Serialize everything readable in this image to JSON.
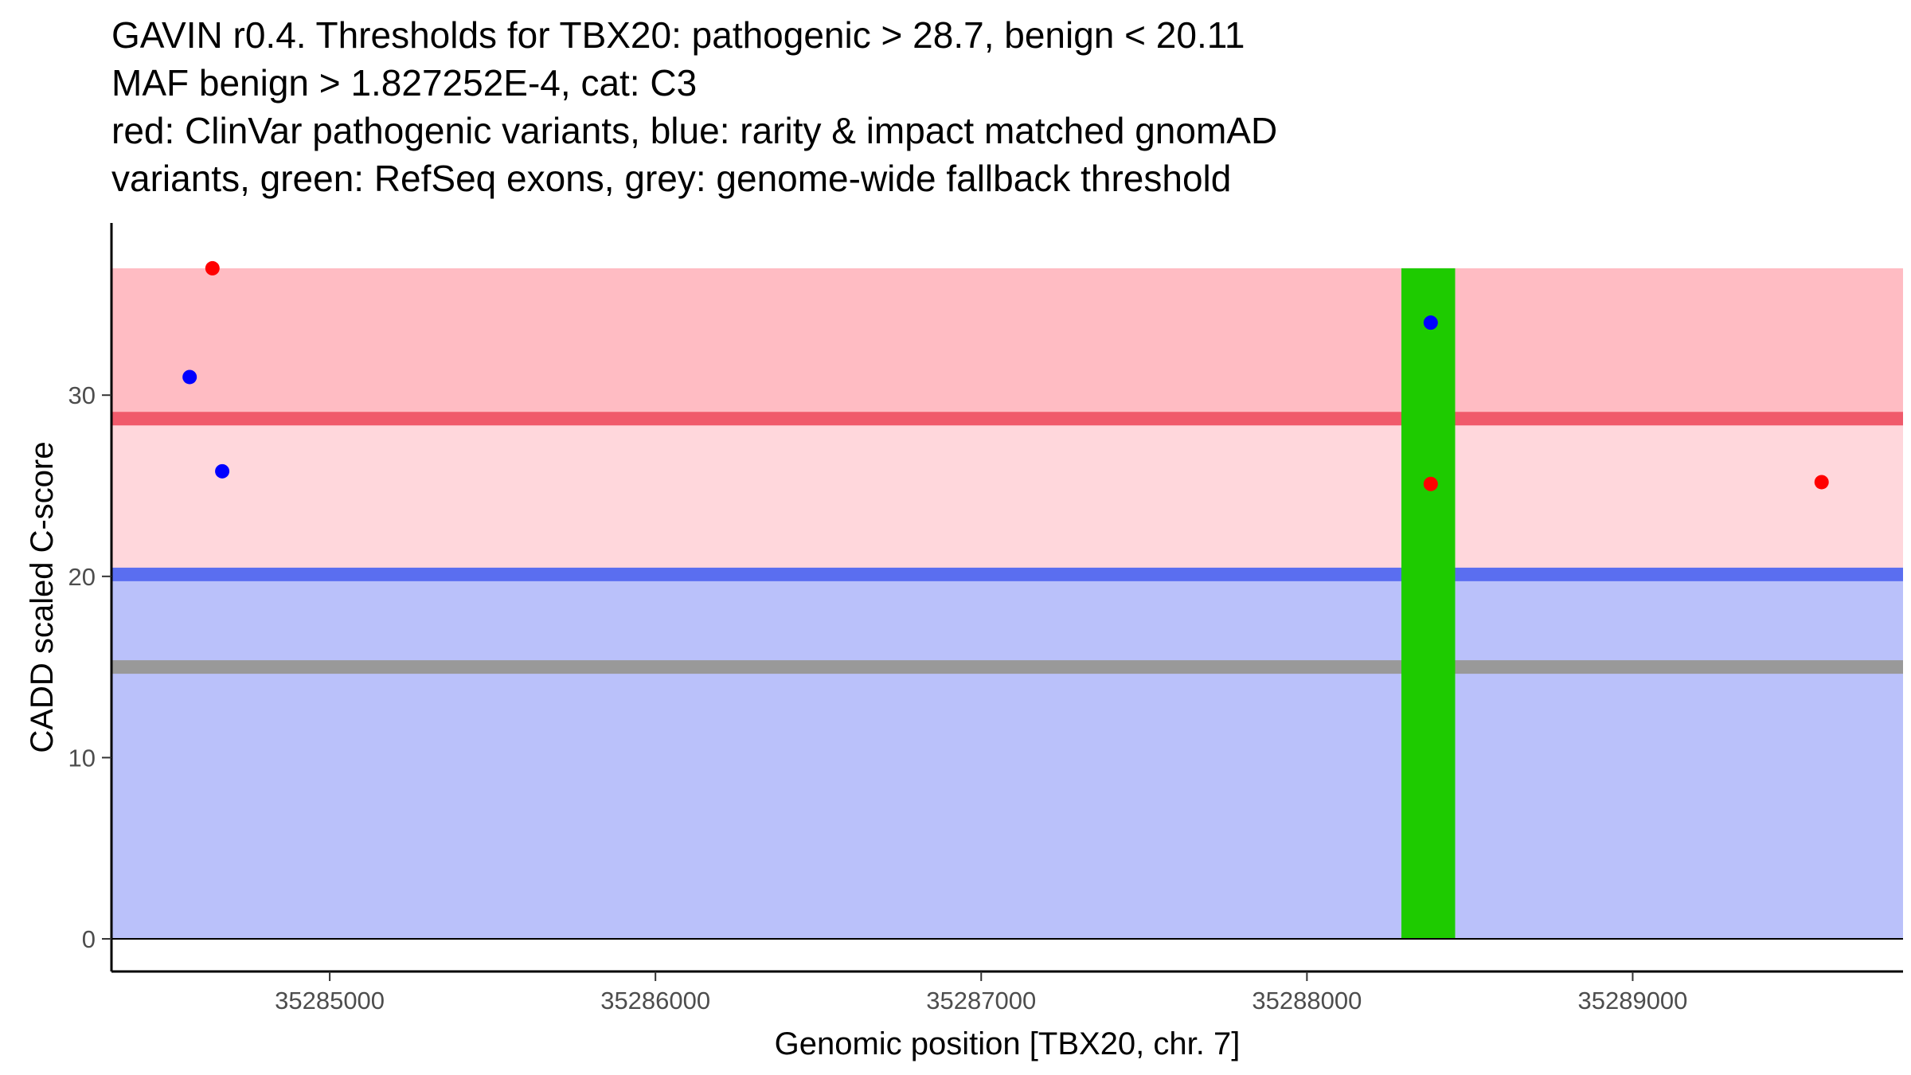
{
  "chart_data": {
    "type": "scatter",
    "title_lines": [
      "GAVIN r0.4. Thresholds for TBX20: pathogenic > 28.7, benign < 20.11",
      "MAF benign > 1.827252E-4, cat: C3",
      "red: ClinVar pathogenic variants, blue: rarity & impact matched gnomAD",
      "variants, green: RefSeq exons, grey: genome-wide fallback threshold"
    ],
    "xlabel": "Genomic position [TBX20, chr. 7]",
    "ylabel": "CADD scaled C-score",
    "xlim": [
      35284330,
      35289830
    ],
    "ylim": [
      -1.8,
      39.5
    ],
    "xticks": [
      35285000,
      35286000,
      35287000,
      35288000,
      35289000
    ],
    "yticks": [
      0,
      10,
      20,
      30
    ],
    "regions": [
      {
        "name": "pathogenic-high",
        "y0": 28.7,
        "y1": 37,
        "color": "#ffbcc3"
      },
      {
        "name": "pathogenic-mid",
        "y0": 20.11,
        "y1": 28.7,
        "color": "#ffd7dc"
      },
      {
        "name": "benign",
        "y0": 0,
        "y1": 20.11,
        "color": "#bac1fa"
      }
    ],
    "threshold_lines": [
      {
        "name": "pathogenic-threshold",
        "y": 28.7,
        "color": "#f05a6b"
      },
      {
        "name": "benign-threshold",
        "y": 20.11,
        "color": "#5a6ef0"
      },
      {
        "name": "fallback-threshold",
        "y": 15.0,
        "color": "#999999"
      }
    ],
    "exons": [
      {
        "x0": 35288290,
        "x1": 35288455,
        "y0": 0,
        "y1": 37,
        "color": "#1ecb00"
      }
    ],
    "series": [
      {
        "name": "ClinVar pathogenic",
        "color": "#ff0000",
        "points": [
          [
            35284640,
            37
          ],
          [
            35288380,
            25.1
          ],
          [
            35289580,
            25.2
          ]
        ]
      },
      {
        "name": "gnomAD matched",
        "color": "#0000ff",
        "points": [
          [
            35284570,
            31
          ],
          [
            35284670,
            25.8
          ],
          [
            35288380,
            34
          ]
        ]
      }
    ]
  }
}
